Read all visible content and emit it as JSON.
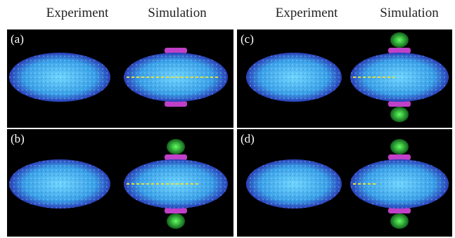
{
  "figure": {
    "column_headers": [
      "Experiment",
      "Simulation",
      "Experiment",
      "Simulation"
    ],
    "panels": [
      {
        "id": "a",
        "label": "(a)",
        "green_lobes": false,
        "trail_extent": 0.95
      },
      {
        "id": "b",
        "label": "(b)",
        "green_lobes": true,
        "trail_extent": 0.75
      },
      {
        "id": "c",
        "label": "(c)",
        "green_lobes": true,
        "trail_extent": 0.45
      },
      {
        "id": "d",
        "label": "(d)",
        "green_lobes": true,
        "trail_extent": 0.25
      }
    ],
    "colors": {
      "background": "#000000",
      "cloud_core": "#6fd6ff",
      "cloud_edge": "#2a3fb8",
      "magenta": "#c040c8",
      "green": "#40d040",
      "trail": "#e0e040"
    }
  }
}
